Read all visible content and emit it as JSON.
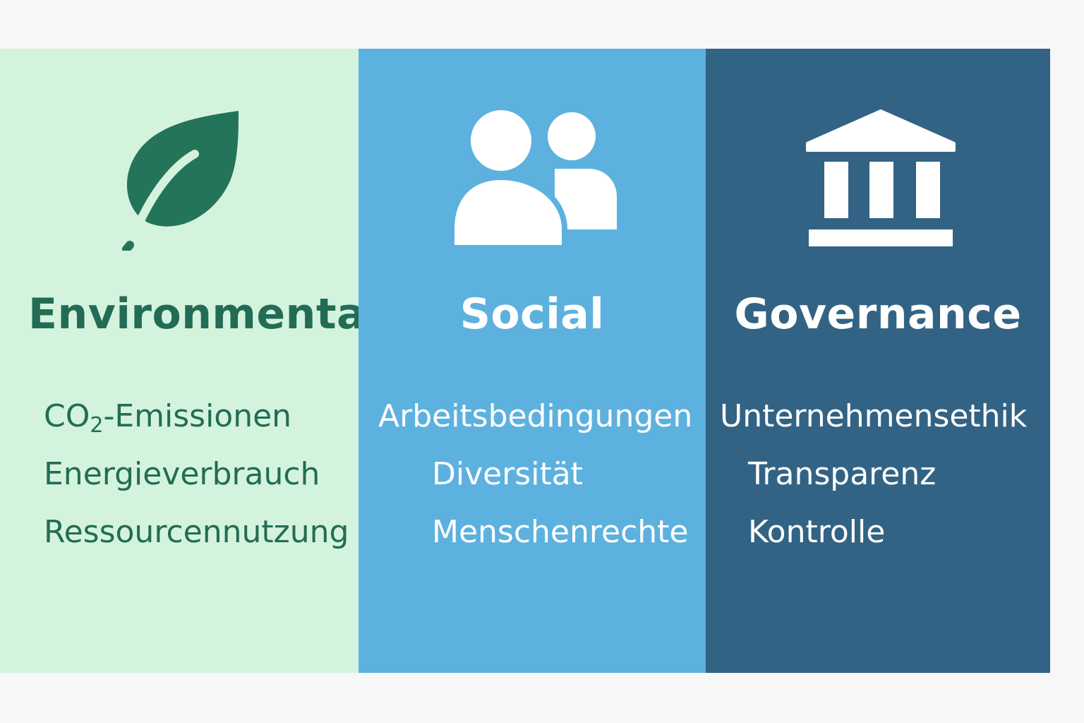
{
  "environmental": {
    "title": "Environmental",
    "item1_main": "CO",
    "item1_sub": "2",
    "item1_rest": "-Emissionen",
    "items": [
      "Energieverbrauch",
      "Ressourcennutzung"
    ],
    "icon": "leaf-icon",
    "color": "#226c55",
    "background": "#d4f3dd"
  },
  "social": {
    "title": "Social",
    "items": [
      "Arbeitsbedingungen",
      "Diversität",
      "Menschenrechte"
    ],
    "icon": "people-icon",
    "background": "#5db1de"
  },
  "governance": {
    "title": "Governance",
    "items": [
      "Unternehmensethik",
      "Transparenz",
      "Kontrolle"
    ],
    "icon": "institution-icon",
    "background": "#326384"
  }
}
